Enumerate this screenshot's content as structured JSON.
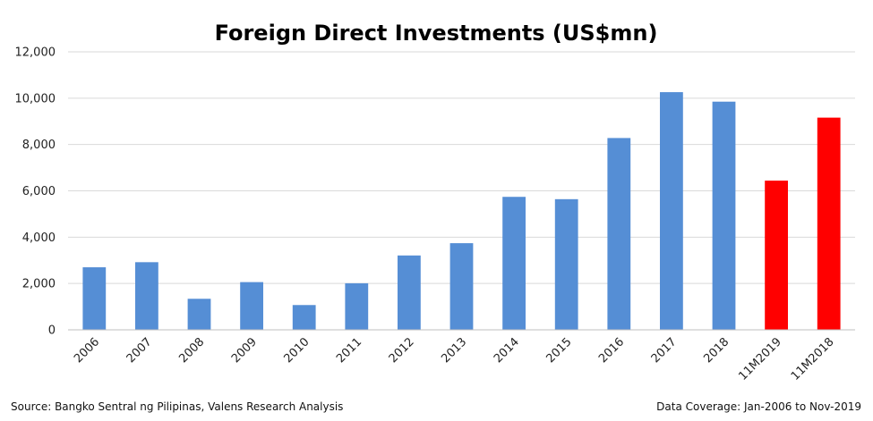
{
  "source_note": "Source: Bangko Sentral ng Pilipinas, Valens Research Analysis",
  "coverage_note": "Data Coverage: Jan-2006 to Nov-2019",
  "colors": {
    "bar_default": "#558ED5",
    "bar_highlight": "#FF0000",
    "gridline": "#D9D9D9",
    "axis": "#BFBFBF"
  },
  "chart_data": {
    "type": "bar",
    "title": "Foreign Direct Investments (US$mn)",
    "xlabel": "",
    "ylabel": "",
    "categories": [
      "2006",
      "2007",
      "2008",
      "2009",
      "2010",
      "2011",
      "2012",
      "2013",
      "2014",
      "2015",
      "2016",
      "2017",
      "2018",
      "11M2019",
      "11M2018"
    ],
    "values": [
      2700,
      2920,
      1340,
      2060,
      1070,
      2010,
      3210,
      3740,
      5740,
      5640,
      8280,
      10260,
      9850,
      6440,
      9160
    ],
    "highlight_categories": [
      "11M2019",
      "11M2018"
    ],
    "ylim": [
      0,
      12000
    ],
    "yticks": [
      0,
      2000,
      4000,
      6000,
      8000,
      10000,
      12000
    ],
    "ytick_labels": [
      "0",
      "2,000",
      "4,000",
      "6,000",
      "8,000",
      "10,000",
      "12,000"
    ],
    "grid": true,
    "legend": "none"
  }
}
